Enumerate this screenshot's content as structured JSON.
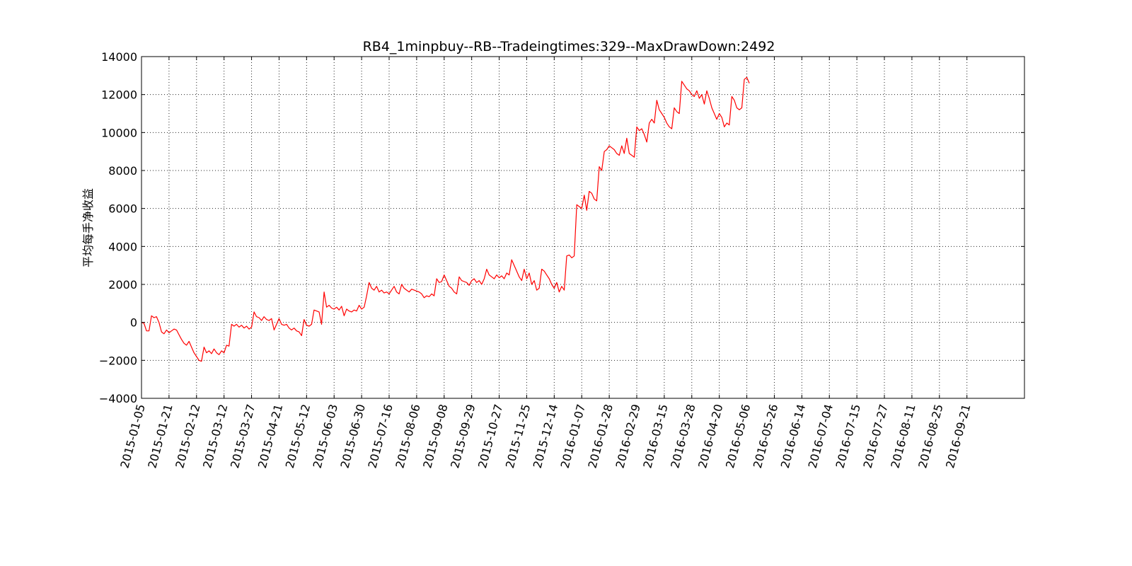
{
  "chart_data": {
    "type": "line",
    "title": "RB4_1minpbuy--RB--Tradeingtimes:329--MaxDrawDown:2492",
    "xlabel": "",
    "ylabel": "平均每手净收益",
    "ylim": [
      -4000,
      14000
    ],
    "yticks": [
      -4000,
      -2000,
      0,
      2000,
      4000,
      6000,
      8000,
      10000,
      12000,
      14000
    ],
    "ytick_labels": [
      "−4000",
      "−2000",
      "0",
      "2000",
      "4000",
      "6000",
      "8000",
      "10000",
      "12000",
      "14000"
    ],
    "xlim_trade_index": [
      0,
      353
    ],
    "xticks": [
      {
        "label": "2015-01-05",
        "trade_index": 0
      },
      {
        "label": "2015-01-21",
        "trade_index": 11
      },
      {
        "label": "2015-02-12",
        "trade_index": 22
      },
      {
        "label": "2015-03-12",
        "trade_index": 33
      },
      {
        "label": "2015-03-27",
        "trade_index": 44
      },
      {
        "label": "2015-04-21",
        "trade_index": 55
      },
      {
        "label": "2015-05-12",
        "trade_index": 66
      },
      {
        "label": "2015-06-03",
        "trade_index": 77
      },
      {
        "label": "2015-06-30",
        "trade_index": 88
      },
      {
        "label": "2015-07-16",
        "trade_index": 99
      },
      {
        "label": "2015-08-06",
        "trade_index": 110
      },
      {
        "label": "2015-09-08",
        "trade_index": 121
      },
      {
        "label": "2015-09-29",
        "trade_index": 132
      },
      {
        "label": "2015-10-27",
        "trade_index": 143
      },
      {
        "label": "2015-11-25",
        "trade_index": 154
      },
      {
        "label": "2015-12-14",
        "trade_index": 165
      },
      {
        "label": "2016-01-07",
        "trade_index": 176
      },
      {
        "label": "2016-01-28",
        "trade_index": 187
      },
      {
        "label": "2016-02-29",
        "trade_index": 198
      },
      {
        "label": "2016-03-15",
        "trade_index": 209
      },
      {
        "label": "2016-03-28",
        "trade_index": 220
      },
      {
        "label": "2016-04-20",
        "trade_index": 231
      },
      {
        "label": "2016-05-06",
        "trade_index": 242
      },
      {
        "label": "2016-05-26",
        "trade_index": 253
      },
      {
        "label": "2016-06-14",
        "trade_index": 264
      },
      {
        "label": "2016-07-04",
        "trade_index": 275
      },
      {
        "label": "2016-07-15",
        "trade_index": 286
      },
      {
        "label": "2016-07-27",
        "trade_index": 297
      },
      {
        "label": "2016-08-11",
        "trade_index": 308
      },
      {
        "label": "2016-08-25",
        "trade_index": 319
      },
      {
        "label": "2016-09-21",
        "trade_index": 330
      }
    ],
    "grid": true,
    "series": [
      {
        "color": "#ff0000",
        "points": [
          [
            0,
            0
          ],
          [
            1,
            -50
          ],
          [
            2,
            -450
          ],
          [
            3,
            -450
          ],
          [
            4,
            350
          ],
          [
            5,
            250
          ],
          [
            6,
            300
          ],
          [
            7,
            0
          ],
          [
            8,
            -500
          ],
          [
            9,
            -600
          ],
          [
            10,
            -400
          ],
          [
            11,
            -550
          ],
          [
            12,
            -450
          ],
          [
            13,
            -350
          ],
          [
            14,
            -400
          ],
          [
            15,
            -650
          ],
          [
            16,
            -900
          ],
          [
            17,
            -1100
          ],
          [
            18,
            -1200
          ],
          [
            19,
            -1000
          ],
          [
            20,
            -1300
          ],
          [
            21,
            -1600
          ],
          [
            22,
            -1800
          ],
          [
            23,
            -2000
          ],
          [
            24,
            -2050
          ],
          [
            25,
            -1300
          ],
          [
            26,
            -1600
          ],
          [
            27,
            -1500
          ],
          [
            28,
            -1650
          ],
          [
            29,
            -1400
          ],
          [
            30,
            -1600
          ],
          [
            31,
            -1700
          ],
          [
            32,
            -1500
          ],
          [
            33,
            -1600
          ],
          [
            34,
            -1200
          ],
          [
            35,
            -1250
          ],
          [
            36,
            -100
          ],
          [
            37,
            -200
          ],
          [
            38,
            -100
          ],
          [
            39,
            -250
          ],
          [
            40,
            -150
          ],
          [
            41,
            -300
          ],
          [
            42,
            -200
          ],
          [
            43,
            -350
          ],
          [
            44,
            -250
          ],
          [
            45,
            550
          ],
          [
            46,
            300
          ],
          [
            47,
            250
          ],
          [
            48,
            100
          ],
          [
            49,
            300
          ],
          [
            50,
            150
          ],
          [
            51,
            100
          ],
          [
            52,
            200
          ],
          [
            53,
            -400
          ],
          [
            54,
            -100
          ],
          [
            55,
            200
          ],
          [
            56,
            -100
          ],
          [
            57,
            -150
          ],
          [
            58,
            -100
          ],
          [
            59,
            -300
          ],
          [
            60,
            -400
          ],
          [
            61,
            -300
          ],
          [
            62,
            -450
          ],
          [
            63,
            -500
          ],
          [
            64,
            -700
          ],
          [
            65,
            150
          ],
          [
            66,
            -150
          ],
          [
            67,
            -200
          ],
          [
            68,
            -100
          ],
          [
            69,
            650
          ],
          [
            70,
            600
          ],
          [
            71,
            550
          ],
          [
            72,
            -100
          ],
          [
            73,
            1600
          ],
          [
            74,
            800
          ],
          [
            75,
            900
          ],
          [
            76,
            750
          ],
          [
            77,
            700
          ],
          [
            78,
            800
          ],
          [
            79,
            650
          ],
          [
            80,
            850
          ],
          [
            81,
            350
          ],
          [
            82,
            700
          ],
          [
            83,
            600
          ],
          [
            84,
            550
          ],
          [
            85,
            650
          ],
          [
            86,
            600
          ],
          [
            87,
            900
          ],
          [
            88,
            700
          ],
          [
            89,
            800
          ],
          [
            90,
            1400
          ],
          [
            91,
            2100
          ],
          [
            92,
            1800
          ],
          [
            93,
            1700
          ],
          [
            94,
            1900
          ],
          [
            95,
            1600
          ],
          [
            96,
            1700
          ],
          [
            97,
            1550
          ],
          [
            98,
            1600
          ],
          [
            99,
            1500
          ],
          [
            100,
            1700
          ],
          [
            101,
            1900
          ],
          [
            102,
            1600
          ],
          [
            103,
            1500
          ],
          [
            104,
            2000
          ],
          [
            105,
            1800
          ],
          [
            106,
            1700
          ],
          [
            107,
            1600
          ],
          [
            108,
            1750
          ],
          [
            109,
            1700
          ],
          [
            110,
            1650
          ],
          [
            111,
            1600
          ],
          [
            112,
            1500
          ],
          [
            113,
            1300
          ],
          [
            114,
            1400
          ],
          [
            115,
            1350
          ],
          [
            116,
            1500
          ],
          [
            117,
            1400
          ],
          [
            118,
            2300
          ],
          [
            119,
            2100
          ],
          [
            120,
            2150
          ],
          [
            121,
            2500
          ],
          [
            122,
            2200
          ],
          [
            123,
            1900
          ],
          [
            124,
            1800
          ],
          [
            125,
            1600
          ],
          [
            126,
            1500
          ],
          [
            127,
            2400
          ],
          [
            128,
            2200
          ],
          [
            129,
            2150
          ],
          [
            130,
            2100
          ],
          [
            131,
            1950
          ],
          [
            132,
            2200
          ],
          [
            133,
            2300
          ],
          [
            134,
            2100
          ],
          [
            135,
            2200
          ],
          [
            136,
            2000
          ],
          [
            137,
            2300
          ],
          [
            138,
            2800
          ],
          [
            139,
            2500
          ],
          [
            140,
            2400
          ],
          [
            141,
            2300
          ],
          [
            142,
            2500
          ],
          [
            143,
            2350
          ],
          [
            144,
            2450
          ],
          [
            145,
            2300
          ],
          [
            146,
            2600
          ],
          [
            147,
            2500
          ],
          [
            148,
            3300
          ],
          [
            149,
            3000
          ],
          [
            150,
            2700
          ],
          [
            151,
            2400
          ],
          [
            152,
            2200
          ],
          [
            153,
            2800
          ],
          [
            154,
            2300
          ],
          [
            155,
            2600
          ],
          [
            156,
            2000
          ],
          [
            157,
            2200
          ],
          [
            158,
            1700
          ],
          [
            159,
            1800
          ],
          [
            160,
            2800
          ],
          [
            161,
            2700
          ],
          [
            162,
            2500
          ],
          [
            163,
            2300
          ],
          [
            164,
            2000
          ],
          [
            165,
            1800
          ],
          [
            166,
            2100
          ],
          [
            167,
            1600
          ],
          [
            168,
            1900
          ],
          [
            169,
            1700
          ],
          [
            170,
            3500
          ],
          [
            171,
            3550
          ],
          [
            172,
            3400
          ],
          [
            173,
            3500
          ],
          [
            174,
            6200
          ],
          [
            175,
            6100
          ],
          [
            176,
            6000
          ],
          [
            177,
            6700
          ],
          [
            178,
            5900
          ],
          [
            179,
            6900
          ],
          [
            180,
            6800
          ],
          [
            181,
            6500
          ],
          [
            182,
            6400
          ],
          [
            183,
            8200
          ],
          [
            184,
            8000
          ],
          [
            185,
            9000
          ],
          [
            186,
            9100
          ],
          [
            187,
            9300
          ],
          [
            188,
            9200
          ],
          [
            189,
            9100
          ],
          [
            190,
            8900
          ],
          [
            191,
            8800
          ],
          [
            192,
            9300
          ],
          [
            193,
            8900
          ],
          [
            194,
            9700
          ],
          [
            195,
            8900
          ],
          [
            196,
            8800
          ],
          [
            197,
            8700
          ],
          [
            198,
            10300
          ],
          [
            199,
            10100
          ],
          [
            200,
            10200
          ],
          [
            201,
            9900
          ],
          [
            202,
            9500
          ],
          [
            203,
            10500
          ],
          [
            204,
            10700
          ],
          [
            205,
            10500
          ],
          [
            206,
            11700
          ],
          [
            207,
            11200
          ],
          [
            208,
            11000
          ],
          [
            209,
            10800
          ],
          [
            210,
            10500
          ],
          [
            211,
            10300
          ],
          [
            212,
            10200
          ],
          [
            213,
            11300
          ],
          [
            214,
            11100
          ],
          [
            215,
            11000
          ],
          [
            216,
            12700
          ],
          [
            217,
            12500
          ],
          [
            218,
            12300
          ],
          [
            219,
            12200
          ],
          [
            220,
            12000
          ],
          [
            221,
            11900
          ],
          [
            222,
            12200
          ],
          [
            223,
            11800
          ],
          [
            224,
            12000
          ],
          [
            225,
            11500
          ],
          [
            226,
            12200
          ],
          [
            227,
            11800
          ],
          [
            228,
            11300
          ],
          [
            229,
            11000
          ],
          [
            230,
            10700
          ],
          [
            231,
            11000
          ],
          [
            232,
            10800
          ],
          [
            233,
            10300
          ],
          [
            234,
            10500
          ],
          [
            235,
            10400
          ],
          [
            236,
            11900
          ],
          [
            237,
            11700
          ],
          [
            238,
            11300
          ],
          [
            239,
            11200
          ],
          [
            240,
            11300
          ],
          [
            241,
            12800
          ],
          [
            242,
            12900
          ],
          [
            243,
            12600
          ]
        ]
      }
    ]
  }
}
